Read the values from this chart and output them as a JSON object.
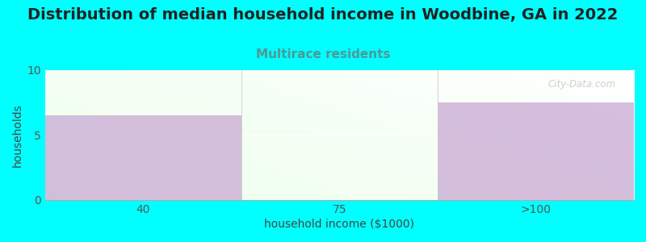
{
  "title": "Distribution of median household income in Woodbine, GA in 2022",
  "subtitle": "Multirace residents",
  "categories": [
    "40",
    "75",
    ">100"
  ],
  "values": [
    6.5,
    0,
    7.5
  ],
  "bar_color": "#c9a8d4",
  "bar_alpha": 0.75,
  "bg_color": "#00ffff",
  "xlabel": "household income ($1000)",
  "ylabel": "households",
  "ylim": [
    0,
    10
  ],
  "yticks": [
    0,
    5,
    10
  ],
  "title_fontsize": 14,
  "subtitle_fontsize": 11,
  "subtitle_color": "#4d9999",
  "axis_label_fontsize": 10,
  "tick_fontsize": 10,
  "watermark": "City-Data.com"
}
